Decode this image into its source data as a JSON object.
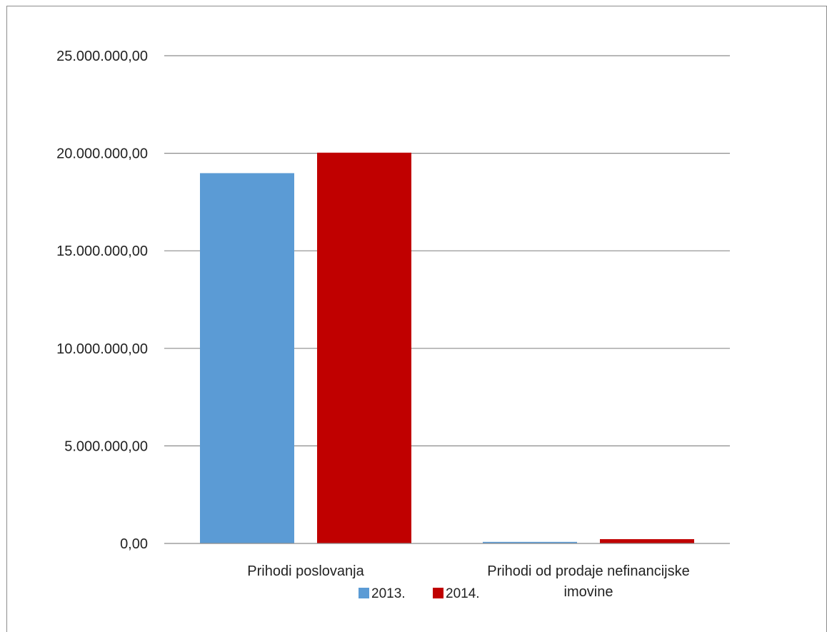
{
  "chart_data": {
    "type": "bar",
    "title": "",
    "xlabel": "",
    "ylabel": "",
    "ylim": [
      0,
      25000000
    ],
    "yticks": [
      0,
      5000000,
      10000000,
      15000000,
      20000000,
      25000000
    ],
    "ytick_labels": [
      "0,00",
      "5.000.000,00",
      "10.000.000,00",
      "15.000.000,00",
      "20.000.000,00",
      "25.000.000,00"
    ],
    "grid": true,
    "categories": [
      [
        "Prihodi poslovanja"
      ],
      [
        "Prihodi od prodaje nefinancijske",
        "imovine"
      ]
    ],
    "series": [
      {
        "name": "2013.",
        "color": "#5b9bd5",
        "values": [
          18980000,
          80000
        ]
      },
      {
        "name": "2014.",
        "color": "#c00000",
        "values": [
          20030000,
          220000
        ]
      }
    ],
    "legend_position": "bottom"
  }
}
